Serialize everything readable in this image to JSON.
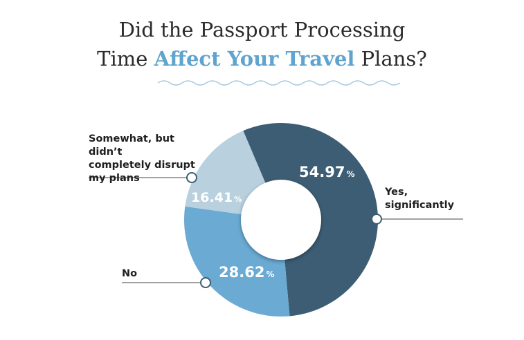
{
  "title": {
    "line1": "Did the Passport Processing",
    "line2_pre": "Time",
    "line2_accent": "Affect Your Travel",
    "line2_post": "Plans?"
  },
  "colors": {
    "accent": "#5fa3cf",
    "yes": "#3c5d73",
    "no": "#6aaad3",
    "somewhat": "#b9d0de"
  },
  "chart_data": {
    "type": "pie",
    "title": "Did the Passport Processing Time Affect Your Travel Plans?",
    "donut": true,
    "slices": [
      {
        "label": "Yes, significantly",
        "value": 54.97,
        "display": "54.97",
        "unit": "%",
        "color": "#3c5d73"
      },
      {
        "label": "No",
        "value": 28.62,
        "display": "28.62",
        "unit": "%",
        "color": "#6aaad3"
      },
      {
        "label": "Somewhat, but didn’t completely disrupt my plans",
        "value": 16.41,
        "display": "16.41",
        "unit": "%",
        "color": "#b9d0de"
      }
    ],
    "labels": {
      "somewhat": [
        "Somewhat, but didn’t",
        "completely disrupt",
        "my plans"
      ],
      "yes": [
        "Yes,",
        "significantly"
      ],
      "no": "No"
    }
  }
}
